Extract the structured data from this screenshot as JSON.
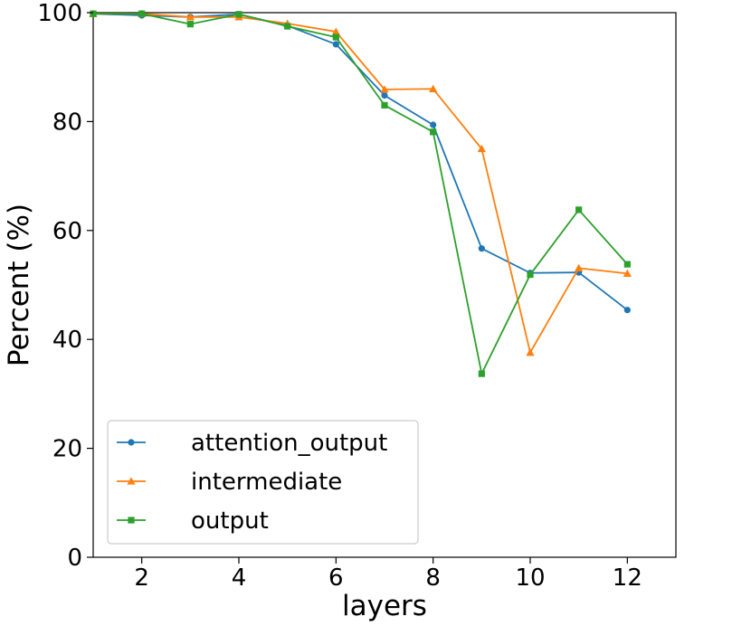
{
  "chart_data": {
    "type": "line",
    "title": "",
    "xlabel": "layers",
    "ylabel": "Percent (%)",
    "xlim": [
      1,
      13
    ],
    "ylim": [
      0,
      100
    ],
    "xticks": [
      2,
      4,
      6,
      8,
      10,
      12
    ],
    "yticks": [
      0,
      20,
      40,
      60,
      80,
      100
    ],
    "grid": false,
    "legend_position": "lower-left",
    "x": [
      1,
      2,
      3,
      4,
      5,
      6,
      7,
      8,
      9,
      10,
      11,
      12
    ],
    "series": [
      {
        "name": "attention_output",
        "color": "#1f77b4",
        "marker": "circle",
        "values": [
          99.8,
          99.5,
          99.2,
          99.7,
          97.6,
          94.2,
          84.8,
          79.4,
          56.7,
          52.2,
          52.3,
          45.4
        ]
      },
      {
        "name": "intermediate",
        "color": "#ff7f0e",
        "marker": "triangle",
        "values": [
          99.8,
          99.8,
          99.2,
          99.2,
          98.0,
          96.5,
          85.9,
          86.0,
          75.0,
          37.6,
          53.1,
          52.1
        ]
      },
      {
        "name": "output",
        "color": "#2ca02c",
        "marker": "square",
        "values": [
          99.8,
          99.8,
          97.9,
          99.7,
          97.5,
          95.5,
          83.0,
          78.1,
          33.7,
          51.9,
          63.8,
          53.8
        ]
      }
    ]
  }
}
